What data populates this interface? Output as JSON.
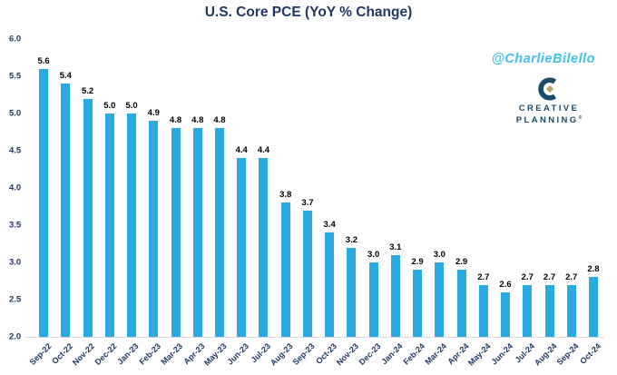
{
  "chart_data": {
    "type": "bar",
    "title": "U.S. Core PCE (YoY % Change)",
    "categories": [
      "Sep-22",
      "Oct-22",
      "Nov-22",
      "Dec-22",
      "Jan-23",
      "Feb-23",
      "Mar-23",
      "Apr-23",
      "May-23",
      "Jun-23",
      "Jul-23",
      "Aug-23",
      "Sep-23",
      "Oct-23",
      "Nov-23",
      "Dec-23",
      "Jan-24",
      "Feb-24",
      "Mar-24",
      "Apr-24",
      "May-24",
      "Jun-24",
      "Jul-24",
      "Aug-24",
      "Sep-24",
      "Oct-24"
    ],
    "values": [
      5.6,
      5.4,
      5.2,
      5.0,
      5.0,
      4.9,
      4.8,
      4.8,
      4.8,
      4.4,
      4.4,
      3.8,
      3.7,
      3.4,
      3.2,
      3.0,
      3.1,
      2.9,
      3.0,
      2.9,
      2.7,
      2.6,
      2.7,
      2.7,
      2.7,
      2.8
    ],
    "xlabel": "",
    "ylabel": "",
    "ylim": [
      2.0,
      6.0
    ],
    "yticks": [
      "6.0",
      "5.5",
      "5.0",
      "4.5",
      "4.0",
      "3.5",
      "3.0",
      "2.5",
      "2.0"
    ],
    "grid": false,
    "legend": false,
    "value_labels_shown": true,
    "colors": {
      "bar": "#29ABE2",
      "axis_text": "#1F3864",
      "value_text": "#000000",
      "baseline": "#D9D9D9"
    }
  },
  "watermark": {
    "text": "@CharlieBilello",
    "color": "#3FC0F0"
  },
  "logo": {
    "line1": "CREATIVE",
    "line2": "PLANNING",
    "registered_mark": "®",
    "icon": "creative-planning-c-icon",
    "navy": "#1C4B66",
    "gold": "#BEA36B"
  }
}
